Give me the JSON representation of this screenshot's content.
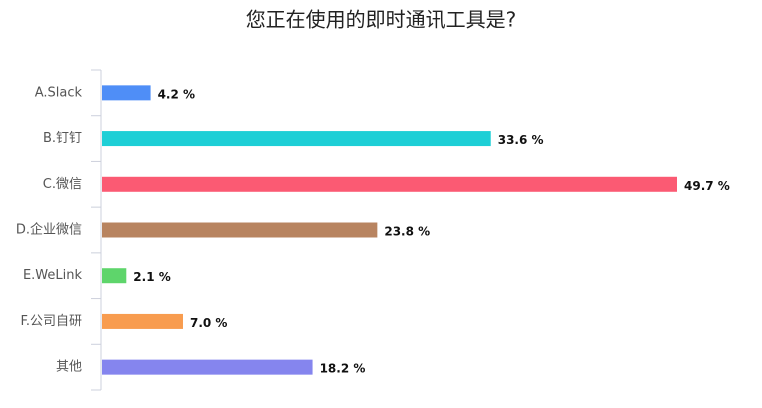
{
  "chart_data": {
    "type": "bar",
    "orientation": "horizontal",
    "title": "您正在使用的即时通讯工具是?",
    "categories": [
      "A.Slack",
      "B.钉钉",
      "C.微信",
      "D.企业微信",
      "E.WeLink",
      "F.公司自研",
      "其他"
    ],
    "values": [
      4.2,
      33.6,
      49.7,
      23.8,
      2.1,
      7.0,
      18.2
    ],
    "value_labels": [
      "4.2 %",
      "33.6 %",
      "49.7 %",
      "23.8 %",
      "2.1 %",
      "7.0 %",
      "18.2 %"
    ],
    "colors": [
      "#4f8ef7",
      "#1ecfd6",
      "#fb5a73",
      "#b88460",
      "#5ed56b",
      "#f89c4f",
      "#8585ee"
    ]
  }
}
